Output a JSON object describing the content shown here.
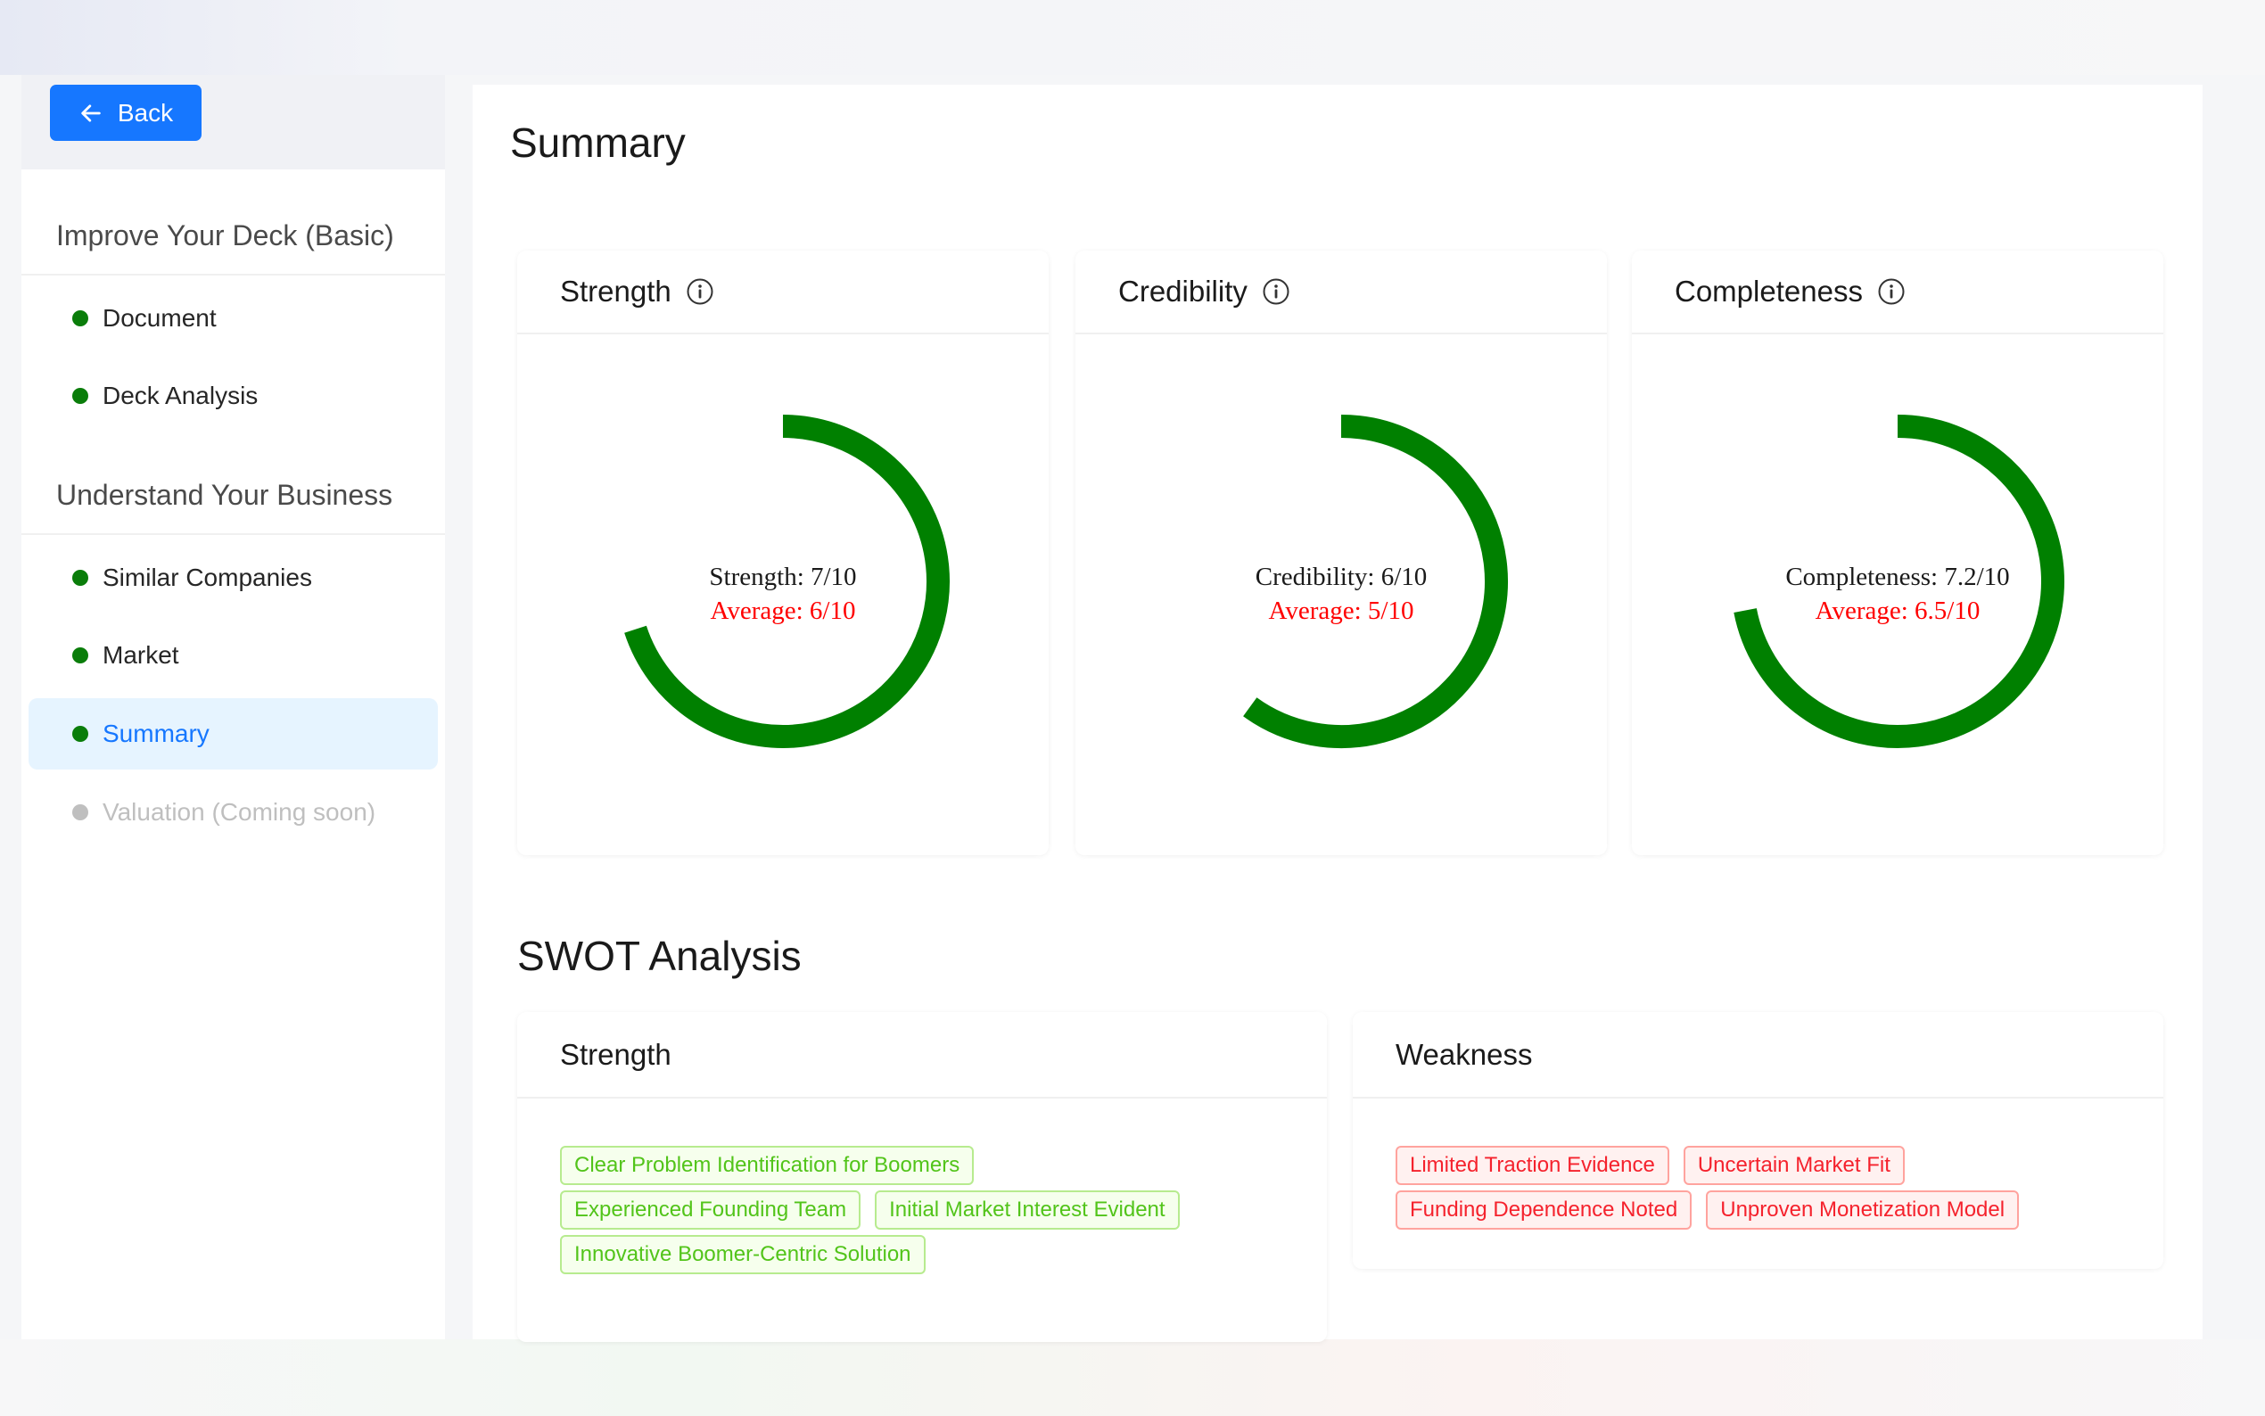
{
  "sidebar": {
    "back_label": "Back",
    "groups": [
      {
        "title": "Improve Your Deck (Basic)",
        "items": [
          {
            "label": "Document"
          },
          {
            "label": "Deck Analysis"
          }
        ]
      },
      {
        "title": "Understand Your Business",
        "items": [
          {
            "label": "Similar Companies"
          },
          {
            "label": "Market"
          },
          {
            "label": "Summary",
            "active": true
          },
          {
            "label": "Valuation (Coming soon)",
            "disabled": true
          }
        ]
      }
    ]
  },
  "main": {
    "title": "Summary",
    "scores": [
      {
        "heading": "Strength",
        "label": "Strength: 7/10",
        "average": "Average: 6/10",
        "value": 7,
        "max": 10
      },
      {
        "heading": "Credibility",
        "label": "Credibility: 6/10",
        "average": "Average: 5/10",
        "value": 6,
        "max": 10
      },
      {
        "heading": "Completeness",
        "label": "Completeness: 7.2/10",
        "average": "Average: 6.5/10",
        "value": 7.2,
        "max": 10
      }
    ],
    "swot": {
      "title": "SWOT Analysis",
      "strength": {
        "heading": "Strength",
        "tags": [
          "Clear Problem Identification for Boomers",
          "Experienced Founding Team",
          "Initial Market Interest Evident",
          "Innovative Boomer-Centric Solution"
        ]
      },
      "weakness": {
        "heading": "Weakness",
        "tags": [
          "Limited Traction Evidence",
          "Uncertain Market Fit",
          "Funding Dependence Noted",
          "Unproven Monetization Model"
        ]
      }
    }
  },
  "colors": {
    "primary": "#1677ff",
    "gauge": "#008000",
    "average": "#ff0000",
    "dot": "#0a7d0a"
  }
}
